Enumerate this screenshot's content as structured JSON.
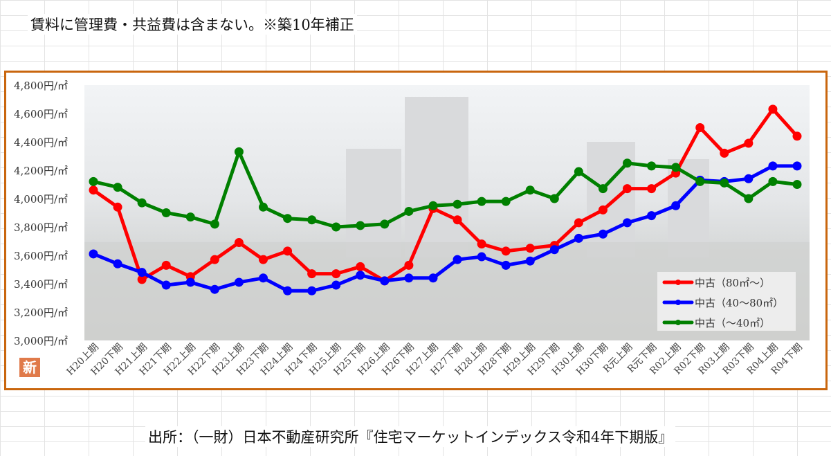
{
  "note": "賃料に管理費・共益費は含まない。※築10年補正",
  "source": "出所：（一財）日本不動産研究所『住宅マーケットインデックス令和4年下期版』",
  "logo_text": "新",
  "chart_data": {
    "type": "line",
    "title": "",
    "xlabel": "",
    "ylabel": "",
    "ylim": [
      3000,
      4800
    ],
    "ytick_step": 200,
    "ytick_suffix": "円/㎡",
    "legend_position": "bottom-right",
    "categories": [
      "H20上期",
      "H20下期",
      "H21上期",
      "H21下期",
      "H22上期",
      "H22下期",
      "H23上期",
      "H23下期",
      "H24上期",
      "H24下期",
      "H25上期",
      "H25下期",
      "H26上期",
      "H26下期",
      "H27上期",
      "H27下期",
      "H28上期",
      "H28下期",
      "H29上期",
      "H29下期",
      "H30上期",
      "H30下期",
      "R元上期",
      "R元下期",
      "R02上期",
      "R02下期",
      "R03上期",
      "R03下期",
      "R04上期",
      "R04下期"
    ],
    "series": [
      {
        "name": "中古（80㎡～）",
        "color": "#ff0000",
        "values": [
          4060,
          3940,
          3430,
          3530,
          3450,
          3570,
          3690,
          3570,
          3630,
          3470,
          3470,
          3520,
          3420,
          3530,
          3930,
          3850,
          3680,
          3630,
          3650,
          3670,
          3830,
          3920,
          4070,
          4070,
          4180,
          4500,
          4320,
          4390,
          4630,
          4440
        ]
      },
      {
        "name": "中古（40～80㎡）",
        "color": "#0000ff",
        "values": [
          3610,
          3540,
          3480,
          3390,
          3410,
          3360,
          3410,
          3440,
          3350,
          3350,
          3390,
          3460,
          3420,
          3440,
          3440,
          3570,
          3590,
          3530,
          3560,
          3640,
          3720,
          3750,
          3830,
          3880,
          3950,
          4130,
          4120,
          4140,
          4230,
          4230
        ]
      },
      {
        "name": "中古（～40㎡）",
        "color": "#008000",
        "values": [
          4120,
          4080,
          3970,
          3900,
          3870,
          3820,
          4330,
          3940,
          3860,
          3850,
          3800,
          3810,
          3820,
          3910,
          3950,
          3960,
          3980,
          3980,
          4060,
          4000,
          4190,
          4070,
          4250,
          4230,
          4220,
          4120,
          4110,
          4000,
          4120,
          4100
        ]
      }
    ]
  }
}
